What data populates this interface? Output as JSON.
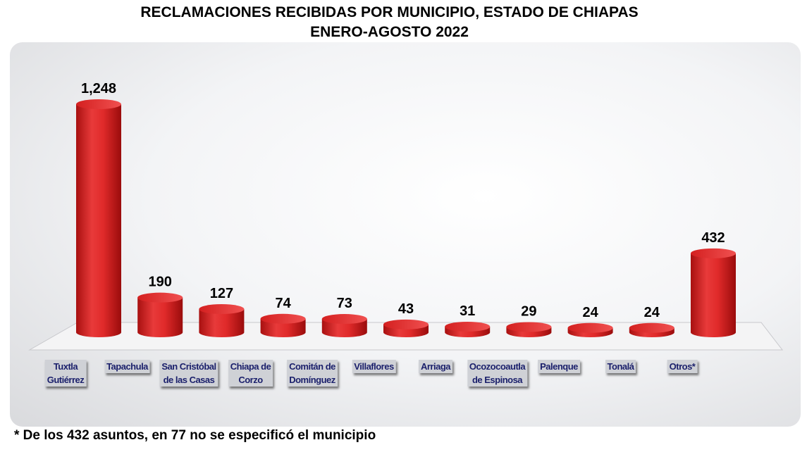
{
  "chart_data": {
    "type": "bar",
    "title": "RECLAMACIONES RECIBIDAS POR MUNICIPIO, ESTADO DE CHIAPAS",
    "subtitle": "ENERO-AGOSTO 2022",
    "categories": [
      "Tuxtla\nGutiérrez",
      "Tapachula",
      "San Cristóbal\nde las Casas",
      "Chiapa de\nCorzo",
      "Comitán de\nDomínguez",
      "Villaflores",
      "Arriaga",
      "Ocozocoautla\nde Espinosa",
      "Palenque",
      "Tonalá",
      "Otros*"
    ],
    "values": [
      1248,
      190,
      127,
      74,
      73,
      43,
      31,
      29,
      24,
      24,
      432
    ],
    "data_labels": [
      "1,248",
      "190",
      "127",
      "74",
      "73",
      "43",
      "31",
      "29",
      "24",
      "24",
      "432"
    ],
    "bar_color": "#e02a2a",
    "grid": false,
    "legend": "none"
  },
  "footnote": "* De los 432 asuntos, en 77 no se especificó el municipio"
}
